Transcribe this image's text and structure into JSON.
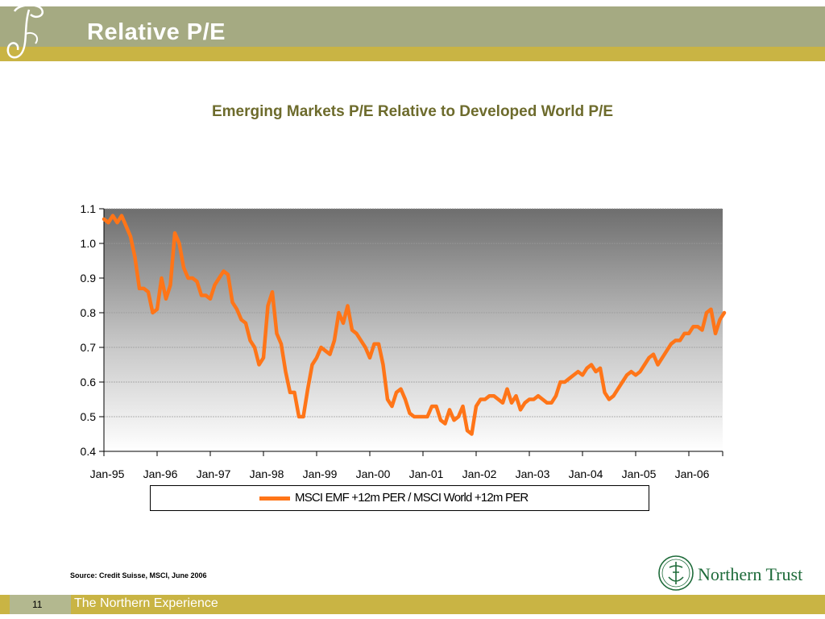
{
  "slide": {
    "title": "Relative P/E",
    "source": "Source: Credit Suisse, MSCI, June 2006",
    "page_number": "11",
    "footer_tagline": "The Northern Experience",
    "brand": "Northern Trust"
  },
  "colors": {
    "header": "#a5aa82",
    "stripe": "#c9b444",
    "series": "#ff7518",
    "title_text": "#6d6b2c",
    "brand": "#1e6b3a"
  },
  "icons": [
    "script-logo-icon",
    "northern-trust-seal-icon"
  ],
  "chart_data": {
    "type": "line",
    "title": "Emerging Markets P/E Relative to Developed World P/E",
    "xlabel": "",
    "ylabel": "",
    "ylim": [
      0.4,
      1.1
    ],
    "yticks": [
      "0.4",
      "0.5",
      "0.6",
      "0.7",
      "0.8",
      "0.9",
      "1.0",
      "1.1"
    ],
    "xticks": [
      "Jan-95",
      "Jan-96",
      "Jan-97",
      "Jan-98",
      "Jan-99",
      "Jan-00",
      "Jan-01",
      "Jan-02",
      "Jan-03",
      "Jan-04",
      "Jan-05",
      "Jan-06"
    ],
    "x_start": "Jan-95",
    "x_step": "1 month",
    "grid": true,
    "legend_position": "bottom",
    "series": [
      {
        "name": "MSCI EMF +12m PER / MSCI World +12m PER",
        "values": [
          1.07,
          1.06,
          1.08,
          1.06,
          1.08,
          1.05,
          1.02,
          0.96,
          0.87,
          0.87,
          0.86,
          0.8,
          0.81,
          0.9,
          0.84,
          0.88,
          1.03,
          1.0,
          0.93,
          0.9,
          0.9,
          0.89,
          0.85,
          0.85,
          0.84,
          0.88,
          0.9,
          0.92,
          0.91,
          0.83,
          0.81,
          0.78,
          0.77,
          0.72,
          0.7,
          0.65,
          0.67,
          0.82,
          0.86,
          0.74,
          0.71,
          0.63,
          0.57,
          0.57,
          0.5,
          0.5,
          0.58,
          0.65,
          0.67,
          0.7,
          0.69,
          0.68,
          0.72,
          0.8,
          0.77,
          0.82,
          0.75,
          0.74,
          0.72,
          0.7,
          0.67,
          0.71,
          0.71,
          0.65,
          0.55,
          0.53,
          0.57,
          0.58,
          0.55,
          0.51,
          0.5,
          0.5,
          0.5,
          0.5,
          0.53,
          0.53,
          0.49,
          0.48,
          0.52,
          0.49,
          0.5,
          0.53,
          0.46,
          0.45,
          0.53,
          0.55,
          0.55,
          0.56,
          0.56,
          0.55,
          0.54,
          0.58,
          0.54,
          0.56,
          0.52,
          0.54,
          0.55,
          0.55,
          0.56,
          0.55,
          0.54,
          0.54,
          0.56,
          0.6,
          0.6,
          0.61,
          0.62,
          0.63,
          0.62,
          0.64,
          0.65,
          0.63,
          0.64,
          0.57,
          0.55,
          0.56,
          0.58,
          0.6,
          0.62,
          0.63,
          0.62,
          0.63,
          0.65,
          0.67,
          0.68,
          0.65,
          0.67,
          0.69,
          0.71,
          0.72,
          0.72,
          0.74,
          0.74,
          0.76,
          0.76,
          0.75,
          0.8,
          0.81,
          0.74,
          0.78,
          0.8
        ]
      }
    ]
  }
}
